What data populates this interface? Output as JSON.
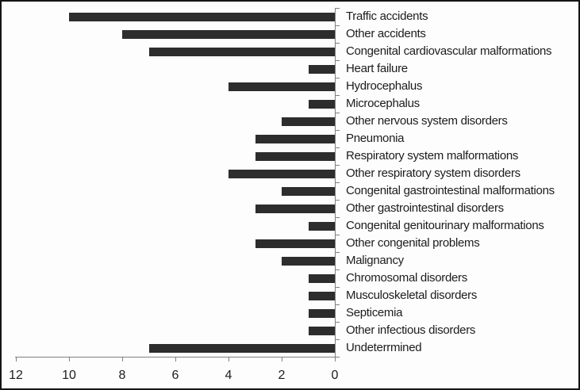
{
  "chart_data": {
    "type": "bar",
    "orientation": "horizontal",
    "title": "",
    "xlabel": "",
    "ylabel": "",
    "categories": [
      "Traffic accidents",
      "Other accidents",
      "Congenital cardiovascular malformations",
      "Heart failure",
      "Hydrocephalus",
      "Microcephalus",
      "Other nervous system disorders",
      "Pneumonia",
      "Respiratory system malformations",
      "Other respiratory system disorders",
      "Congenital gastrointestinal malformations",
      "Other gastrointestinal disorders",
      "Congenital genitourinary malformations",
      "Other congenital problems",
      "Malignancy",
      "Chromosomal disorders",
      "Musculoskeletal disorders",
      "Septicemia",
      "Other infectious disorders",
      "Undeterrmined"
    ],
    "values": [
      10,
      8,
      7,
      1,
      4,
      1,
      2,
      3,
      3,
      4,
      2,
      3,
      1,
      3,
      2,
      1,
      1,
      1,
      1,
      7
    ],
    "x_ticks": [
      12,
      10,
      8,
      6,
      4,
      2,
      0
    ],
    "xlim": [
      12,
      0
    ],
    "value_axis_reversed": true,
    "category_labels_position": "right",
    "grid": false,
    "legend": false,
    "bar_color": "#2d2d2d",
    "axis_color": "#7f7f7f",
    "text_color": "#1c1c1c",
    "background_color": "#fdfdfd",
    "border_color": "#141414"
  }
}
